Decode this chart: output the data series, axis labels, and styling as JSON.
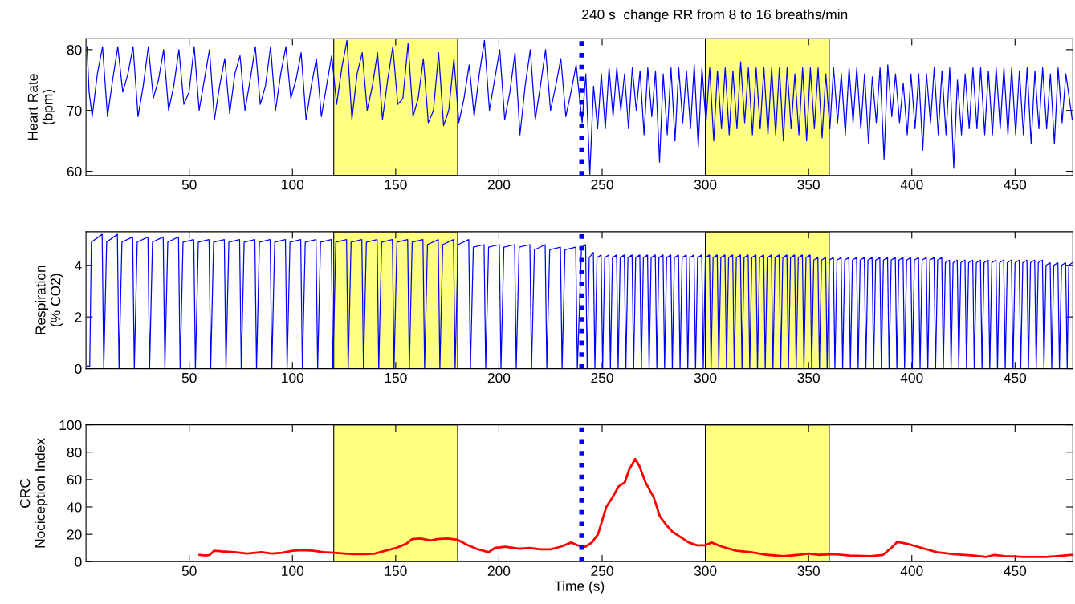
{
  "chart_data": [
    {
      "type": "line",
      "ylabel": "Heart Rate\n(bpm)",
      "xlim": [
        0,
        478
      ],
      "xticks": [
        50,
        100,
        150,
        200,
        250,
        300,
        350,
        400,
        450
      ],
      "ylim": [
        59.3,
        81.8
      ],
      "yticks": [
        60,
        70,
        80
      ],
      "grid": false,
      "marker": "none",
      "line_style": "solid",
      "bands": [
        {
          "axis": "x",
          "from": 120,
          "to": 180,
          "color": "#ffff80"
        },
        {
          "axis": "x",
          "from": 300,
          "to": 360,
          "color": "#ffff80"
        }
      ],
      "ref_lines": [
        {
          "axis": "x",
          "value": 240,
          "label": "240 s  change RR from 8 to 16 breaths/min",
          "color": "#0000ff",
          "line_style": "dotted"
        }
      ],
      "series": [
        {
          "color": "#0000ff",
          "x": [
            0.5,
            1.5,
            3.0,
            5.5,
            8.0,
            10.4,
            12.9,
            15.4,
            17.8,
            20.3,
            22.8,
            25.2,
            27.7,
            30.2,
            32.6,
            35.1,
            37.6,
            40.0,
            42.5,
            45.0,
            47.4,
            49.9,
            52.4,
            54.8,
            57.3,
            59.8,
            62.2,
            64.7,
            67.2,
            69.6,
            72.1,
            74.6,
            77.0,
            79.5,
            82.0,
            84.4,
            86.9,
            89.4,
            91.8,
            94.3,
            96.8,
            99.2,
            101.7,
            104.2,
            106.6,
            109.1,
            111.6,
            114.0,
            116.5,
            119.0,
            121.4,
            123.9,
            126.4,
            128.8,
            131.3,
            133.8,
            136.2,
            138.7,
            141.2,
            143.6,
            146.1,
            148.6,
            151.0,
            153.5,
            156.0,
            158.4,
            160.9,
            163.4,
            165.8,
            168.3,
            170.8,
            173.2,
            175.7,
            178.2,
            180.6,
            183.1,
            185.6,
            188.0,
            190.5,
            193.0,
            195.4,
            197.9,
            200.4,
            202.8,
            205.3,
            207.8,
            210.2,
            212.7,
            215.2,
            217.6,
            220.1,
            222.6,
            225.0,
            227.5,
            230.0,
            232.4,
            234.9,
            237.4,
            240.3,
            242.1,
            244.05,
            245.85,
            247.8,
            249.6,
            251.55,
            253.35,
            255.3,
            257.1,
            259.05,
            260.85,
            262.8,
            264.6,
            266.55,
            268.35,
            270.3,
            272.1,
            274.05,
            275.85,
            277.8,
            279.6,
            281.55,
            283.35,
            285.3,
            287.1,
            289.05,
            290.85,
            292.8,
            294.6,
            296.55,
            298.35,
            300.3,
            302.1,
            304.05,
            305.85,
            307.8,
            309.6,
            311.55,
            313.35,
            315.3,
            317.1,
            319.05,
            320.85,
            322.8,
            324.6,
            326.55,
            328.35,
            330.3,
            332.1,
            334.05,
            335.85,
            337.8,
            339.6,
            341.55,
            343.35,
            345.3,
            347.1,
            349.05,
            350.85,
            352.8,
            354.6,
            356.55,
            358.35,
            360.3,
            362.1,
            364.05,
            365.85,
            367.8,
            369.6,
            371.55,
            373.35,
            375.3,
            377.1,
            379.05,
            380.85,
            382.8,
            384.6,
            386.55,
            388.35,
            390.3,
            392.1,
            394.05,
            395.85,
            397.8,
            399.6,
            401.55,
            403.35,
            405.3,
            407.1,
            409.05,
            410.85,
            412.8,
            414.6,
            416.55,
            418.35,
            420.3,
            422.1,
            424.05,
            425.85,
            427.8,
            429.6,
            431.55,
            433.35,
            435.3,
            437.1,
            439.05,
            440.85,
            442.8,
            444.6,
            446.55,
            448.35,
            450.3,
            452.1,
            454.05,
            455.85,
            457.8,
            459.6,
            461.55,
            463.35,
            465.3,
            467.1,
            469.05,
            470.85,
            472.8,
            474.6,
            477.7
          ],
          "values": [
            80.5,
            73,
            69,
            76,
            80.5,
            69,
            75,
            80.5,
            73,
            76,
            80.5,
            69,
            74,
            80.5,
            72,
            75,
            80,
            70,
            74,
            80,
            71,
            73,
            80.5,
            70,
            75,
            80,
            68.5,
            74,
            78.5,
            69.5,
            76,
            79,
            70,
            75,
            80.5,
            71,
            74,
            80.5,
            70,
            76,
            80.5,
            72,
            75,
            79.5,
            68.5,
            74,
            78.5,
            69,
            74,
            79,
            71,
            77,
            81.5,
            68.5,
            76,
            79.5,
            70,
            74,
            79.5,
            68.5,
            75,
            80.5,
            71,
            72,
            81,
            69,
            72,
            78.5,
            68,
            70,
            79.5,
            67.5,
            70,
            78.5,
            68,
            72,
            77.5,
            69,
            76,
            81.5,
            70,
            75,
            80,
            68.5,
            73,
            79.5,
            66,
            74,
            80,
            68.5,
            74,
            80,
            70,
            74,
            78.5,
            69,
            73,
            77.5,
            68,
            76,
            59.5,
            74,
            67,
            76,
            67,
            77,
            69,
            77,
            70,
            76,
            67,
            77,
            70,
            76.5,
            66,
            77,
            69,
            76.5,
            61.5,
            76,
            66,
            77,
            65,
            77,
            68,
            76.5,
            67,
            77.5,
            64,
            77,
            68,
            77,
            65,
            76.5,
            67,
            77,
            66,
            76.5,
            67,
            78,
            68,
            77,
            66,
            77,
            67,
            77,
            66,
            77,
            66,
            77,
            65,
            77,
            67,
            76,
            66,
            77,
            65,
            77,
            67,
            77,
            65.5,
            76,
            67,
            77,
            68,
            76,
            66,
            77,
            68,
            77,
            67,
            76,
            64.5,
            75.5,
            68,
            77,
            62,
            77.5,
            69,
            76,
            68,
            74.5,
            66,
            76,
            67,
            76,
            63.5,
            76,
            68,
            77,
            66,
            76.5,
            66,
            77,
            60.5,
            75,
            66,
            76,
            67,
            77,
            67,
            77,
            66,
            76.5,
            66,
            77,
            67,
            77,
            66,
            77,
            66,
            76.5,
            66,
            77,
            64.5,
            76.5,
            67,
            77,
            67,
            76,
            64.5,
            77,
            68,
            76,
            68.5
          ]
        }
      ]
    },
    {
      "type": "line",
      "ylabel": "Respiration\n(% CO2)",
      "xlim": [
        0,
        478
      ],
      "xticks": [
        50,
        100,
        150,
        200,
        250,
        300,
        350,
        400,
        450
      ],
      "ylim": [
        0,
        5.3
      ],
      "yticks": [
        0,
        2,
        4
      ],
      "grid": false,
      "marker": "none",
      "line_style": "solid",
      "bands": [
        {
          "axis": "x",
          "from": 120,
          "to": 180,
          "color": "#ffff80"
        },
        {
          "axis": "x",
          "from": 300,
          "to": 360,
          "color": "#ffff80"
        }
      ],
      "ref_lines": [
        {
          "axis": "x",
          "value": 240,
          "color": "#0000ff",
          "line_style": "dotted"
        }
      ],
      "series": [
        {
          "color": "#0000ff",
          "x": [
            0.5,
            1.8,
            2.6,
            7.8,
            8.6,
            10.0,
            15.2,
            16.0,
            17.4,
            22.6,
            23.4,
            24.8,
            30.0,
            30.8,
            32.2,
            37.4,
            38.2,
            39.6,
            44.8,
            45.6,
            47.0,
            52.2,
            53.0,
            54.4,
            59.6,
            60.4,
            61.8,
            67.0,
            67.8,
            69.2,
            74.4,
            75.2,
            76.6,
            81.8,
            82.6,
            84.0,
            89.2,
            90.0,
            91.4,
            96.6,
            97.4,
            98.8,
            104.0,
            104.8,
            106.2,
            111.4,
            112.2,
            113.6,
            118.8,
            119.6,
            121.0,
            126.2,
            127.0,
            128.4,
            133.6,
            134.4,
            135.8,
            141.0,
            141.8,
            143.2,
            148.4,
            149.2,
            150.6,
            155.8,
            156.6,
            158.0,
            163.2,
            164.0,
            165.4,
            170.6,
            171.4,
            172.8,
            178.0,
            178.8,
            180.2,
            185.4,
            186.2,
            187.6,
            192.8,
            193.6,
            195.0,
            200.2,
            201.0,
            202.4,
            207.6,
            208.4,
            209.8,
            215.0,
            215.8,
            217.2,
            222.4,
            223.2,
            224.6,
            229.8,
            230.6,
            232.0,
            237.2,
            238.0,
            240,
            242,
            242.75,
            243.75,
            245.75,
            246.5,
            247.5,
            249.5,
            250.25,
            251.25,
            253.25,
            254,
            255,
            257,
            257.75,
            258.75,
            260.75,
            261.5,
            262.5,
            264.5,
            265.25,
            266.25,
            268.25,
            269,
            270,
            272,
            272.75,
            273.75,
            275.75,
            276.5,
            277.5,
            279.5,
            280.25,
            281.25,
            283.25,
            284,
            285,
            287,
            287.75,
            288.75,
            290.75,
            291.5,
            292.5,
            294.5,
            295.25,
            296.25,
            298.25,
            299,
            300,
            302,
            302.75,
            303.75,
            305.75,
            306.5,
            307.5,
            309.5,
            310.25,
            311.25,
            313.25,
            314,
            315,
            317,
            317.75,
            318.75,
            320.75,
            321.5,
            322.5,
            324.5,
            325.25,
            326.25,
            328.25,
            329,
            330,
            332,
            332.75,
            333.75,
            335.75,
            336.5,
            337.5,
            339.5,
            340.25,
            341.25,
            343.25,
            344,
            345,
            347,
            347.75,
            348.75,
            350.75,
            351.5,
            352.5,
            354.5,
            355.25,
            356.25,
            358.25,
            359,
            360,
            362,
            362.75,
            363.75,
            365.75,
            366.5,
            367.5,
            369.5,
            370.25,
            371.25,
            373.25,
            374,
            375,
            377,
            377.75,
            378.75,
            380.75,
            381.5,
            382.5,
            384.5,
            385.25,
            386.25,
            388.25,
            389,
            390,
            392,
            392.75,
            393.75,
            395.75,
            396.5,
            397.5,
            399.5,
            400.25,
            401.25,
            403.25,
            404,
            405,
            407,
            407.75,
            408.75,
            410.75,
            411.5,
            412.5,
            414.5,
            415.25,
            416.25,
            418.25,
            419,
            420,
            422,
            422.75,
            423.75,
            425.75,
            426.5,
            427.5,
            429.5,
            430.25,
            431.25,
            433.25,
            434,
            435,
            437,
            437.75,
            438.75,
            440.75,
            441.5,
            442.5,
            444.5,
            445.25,
            446.25,
            448.25,
            449,
            450,
            452,
            452.75,
            453.75,
            455.75,
            456.5,
            457.5,
            459.5,
            460.25,
            461.25,
            463.25,
            464,
            465,
            467,
            467.75,
            468.75,
            470.75,
            471.5,
            472.5,
            474.5,
            475.25,
            476,
            477.7
          ],
          "values": [
            0.1,
            0.1,
            4.9,
            5.2,
            0,
            4.9,
            5.2,
            0,
            4.9,
            5.1,
            0,
            4.9,
            5.1,
            0,
            4.9,
            5.1,
            0,
            4.9,
            5.1,
            0,
            4.9,
            5.0,
            0,
            4.9,
            5.0,
            0,
            4.9,
            5.0,
            0,
            4.9,
            5.0,
            0,
            4.9,
            5.0,
            0,
            4.9,
            5.0,
            0,
            4.9,
            5.0,
            0,
            4.9,
            5.0,
            0,
            4.9,
            5.0,
            0,
            4.9,
            5.0,
            0,
            4.9,
            5.0,
            0,
            4.9,
            5.0,
            0,
            4.9,
            5.0,
            0,
            4.9,
            5.0,
            0,
            4.9,
            5.0,
            0,
            4.9,
            5.0,
            0,
            4.8,
            5.0,
            0,
            4.8,
            5.0,
            0,
            4.8,
            5.0,
            0,
            4.7,
            4.8,
            0,
            4.7,
            4.8,
            0,
            4.7,
            4.8,
            0,
            4.7,
            4.8,
            0,
            4.6,
            4.8,
            0,
            4.6,
            4.7,
            0,
            4.6,
            4.7,
            0,
            4.7,
            4.8,
            0,
            4.3,
            4.5,
            0,
            4.3,
            4.4,
            0,
            4.3,
            4.4,
            0,
            4.3,
            4.4,
            0,
            4.3,
            4.4,
            0,
            4.3,
            4.4,
            0,
            4.3,
            4.4,
            0,
            4.3,
            4.4,
            0,
            4.3,
            4.4,
            0,
            4.3,
            4.4,
            0,
            4.3,
            4.4,
            0,
            4.3,
            4.4,
            0,
            4.3,
            4.4,
            0,
            4.3,
            4.4,
            0,
            4.3,
            4.4,
            0,
            4.3,
            4.4,
            0,
            4.3,
            4.4,
            0,
            4.3,
            4.4,
            0,
            4.3,
            4.4,
            0,
            4.3,
            4.4,
            0,
            4.3,
            4.4,
            0,
            4.3,
            4.4,
            0,
            4.3,
            4.4,
            0,
            4.3,
            4.4,
            0,
            4.3,
            4.4,
            0,
            4.3,
            4.4,
            0,
            4.3,
            4.4,
            0,
            4.3,
            4.4,
            0,
            4.3,
            4.4,
            0,
            4.2,
            4.3,
            0,
            4.2,
            4.3,
            0,
            4.2,
            4.3,
            0,
            4.2,
            4.3,
            0,
            4.2,
            4.3,
            0,
            4.2,
            4.3,
            0,
            4.2,
            4.3,
            0,
            4.2,
            4.3,
            0,
            4.2,
            4.3,
            0,
            4.2,
            4.3,
            0,
            4.2,
            4.3,
            0,
            4.2,
            4.3,
            0,
            4.2,
            4.3,
            0,
            4.2,
            4.3,
            0,
            4.2,
            4.3,
            0,
            4.2,
            4.3,
            0,
            4.2,
            4.3,
            0,
            4.1,
            4.2,
            0,
            4.1,
            4.2,
            0,
            4.1,
            4.2,
            0,
            4.1,
            4.2,
            0,
            4.1,
            4.2,
            0,
            4.1,
            4.2,
            0,
            4.1,
            4.2,
            0,
            4.1,
            4.2,
            0,
            4.1,
            4.2,
            0,
            4.1,
            4.2,
            0,
            4.1,
            4.2,
            0,
            4.1,
            4.2,
            0,
            4.1,
            4.2,
            0,
            4.0,
            4.1,
            0,
            4.0,
            4.1,
            0,
            4.0,
            4.1,
            0,
            4.0,
            4.1
          ]
        }
      ]
    },
    {
      "type": "line",
      "ylabel": "CRC\nNociception Index",
      "xlabel": "Time (s)",
      "xlim": [
        0,
        478
      ],
      "xticks": [
        50,
        100,
        150,
        200,
        250,
        300,
        350,
        400,
        450
      ],
      "ylim": [
        0,
        100
      ],
      "yticks": [
        0,
        20,
        40,
        60,
        80,
        100
      ],
      "grid": false,
      "marker": "none",
      "line_style": "solid",
      "bands": [
        {
          "axis": "x",
          "from": 120,
          "to": 180,
          "color": "#ffff80"
        },
        {
          "axis": "x",
          "from": 300,
          "to": 360,
          "color": "#ffff80"
        }
      ],
      "ref_lines": [
        {
          "axis": "x",
          "value": 240,
          "color": "#0000ff",
          "line_style": "dotted"
        }
      ],
      "series": [
        {
          "color": "#ff0000",
          "x": [
            55,
            58,
            60,
            62,
            66,
            72,
            78,
            85,
            90,
            95,
            100,
            105,
            110,
            115,
            120,
            125,
            130,
            135,
            140,
            145,
            150,
            155,
            158,
            162,
            167,
            170,
            175,
            180,
            185,
            190,
            195,
            198,
            203,
            210,
            215,
            220,
            225,
            230,
            235,
            238,
            242,
            245,
            248,
            250,
            252,
            255,
            258,
            261,
            263,
            266,
            268,
            271,
            275,
            278,
            281,
            284,
            288,
            292,
            296,
            300,
            303,
            308,
            315,
            322,
            330,
            338,
            345,
            350,
            355,
            362,
            370,
            380,
            386,
            390,
            393,
            398,
            405,
            412,
            420,
            430,
            436,
            440,
            445,
            455,
            465,
            470,
            478
          ],
          "values": [
            5,
            4.5,
            5,
            8,
            7.5,
            7,
            6,
            7,
            6,
            6.5,
            8,
            8.5,
            8,
            7,
            6.5,
            6,
            5.5,
            5.5,
            6,
            8,
            10,
            13,
            16.5,
            17,
            15.5,
            16.5,
            17,
            16,
            12,
            9,
            7,
            10,
            11,
            9.5,
            10,
            9,
            9,
            11,
            14,
            12,
            11,
            14,
            20,
            30,
            40,
            47,
            55,
            58,
            67,
            75,
            70,
            58,
            47,
            33,
            27,
            22,
            18,
            14,
            12,
            12,
            14,
            11,
            8,
            7,
            5,
            4,
            5,
            6,
            5,
            5.5,
            4.5,
            4,
            5,
            10,
            14.5,
            13,
            10,
            7,
            5.5,
            4.5,
            3.5,
            5,
            4,
            3.5,
            3.5,
            4,
            5
          ]
        }
      ]
    }
  ]
}
